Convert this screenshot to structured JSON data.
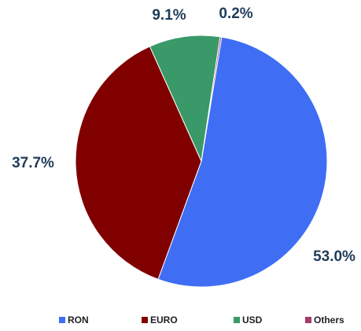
{
  "chart_data": {
    "type": "pie",
    "categories": [
      "RON",
      "EURO",
      "USD",
      "Others"
    ],
    "values": [
      53.0,
      37.7,
      9.1,
      0.2
    ],
    "value_labels": [
      "53.0%",
      "37.7%",
      "9.1%",
      "0.2%"
    ],
    "colors": [
      "#3f6ef5",
      "#800000",
      "#3a9968",
      "#9e3d6a"
    ],
    "legend": "bottom"
  }
}
